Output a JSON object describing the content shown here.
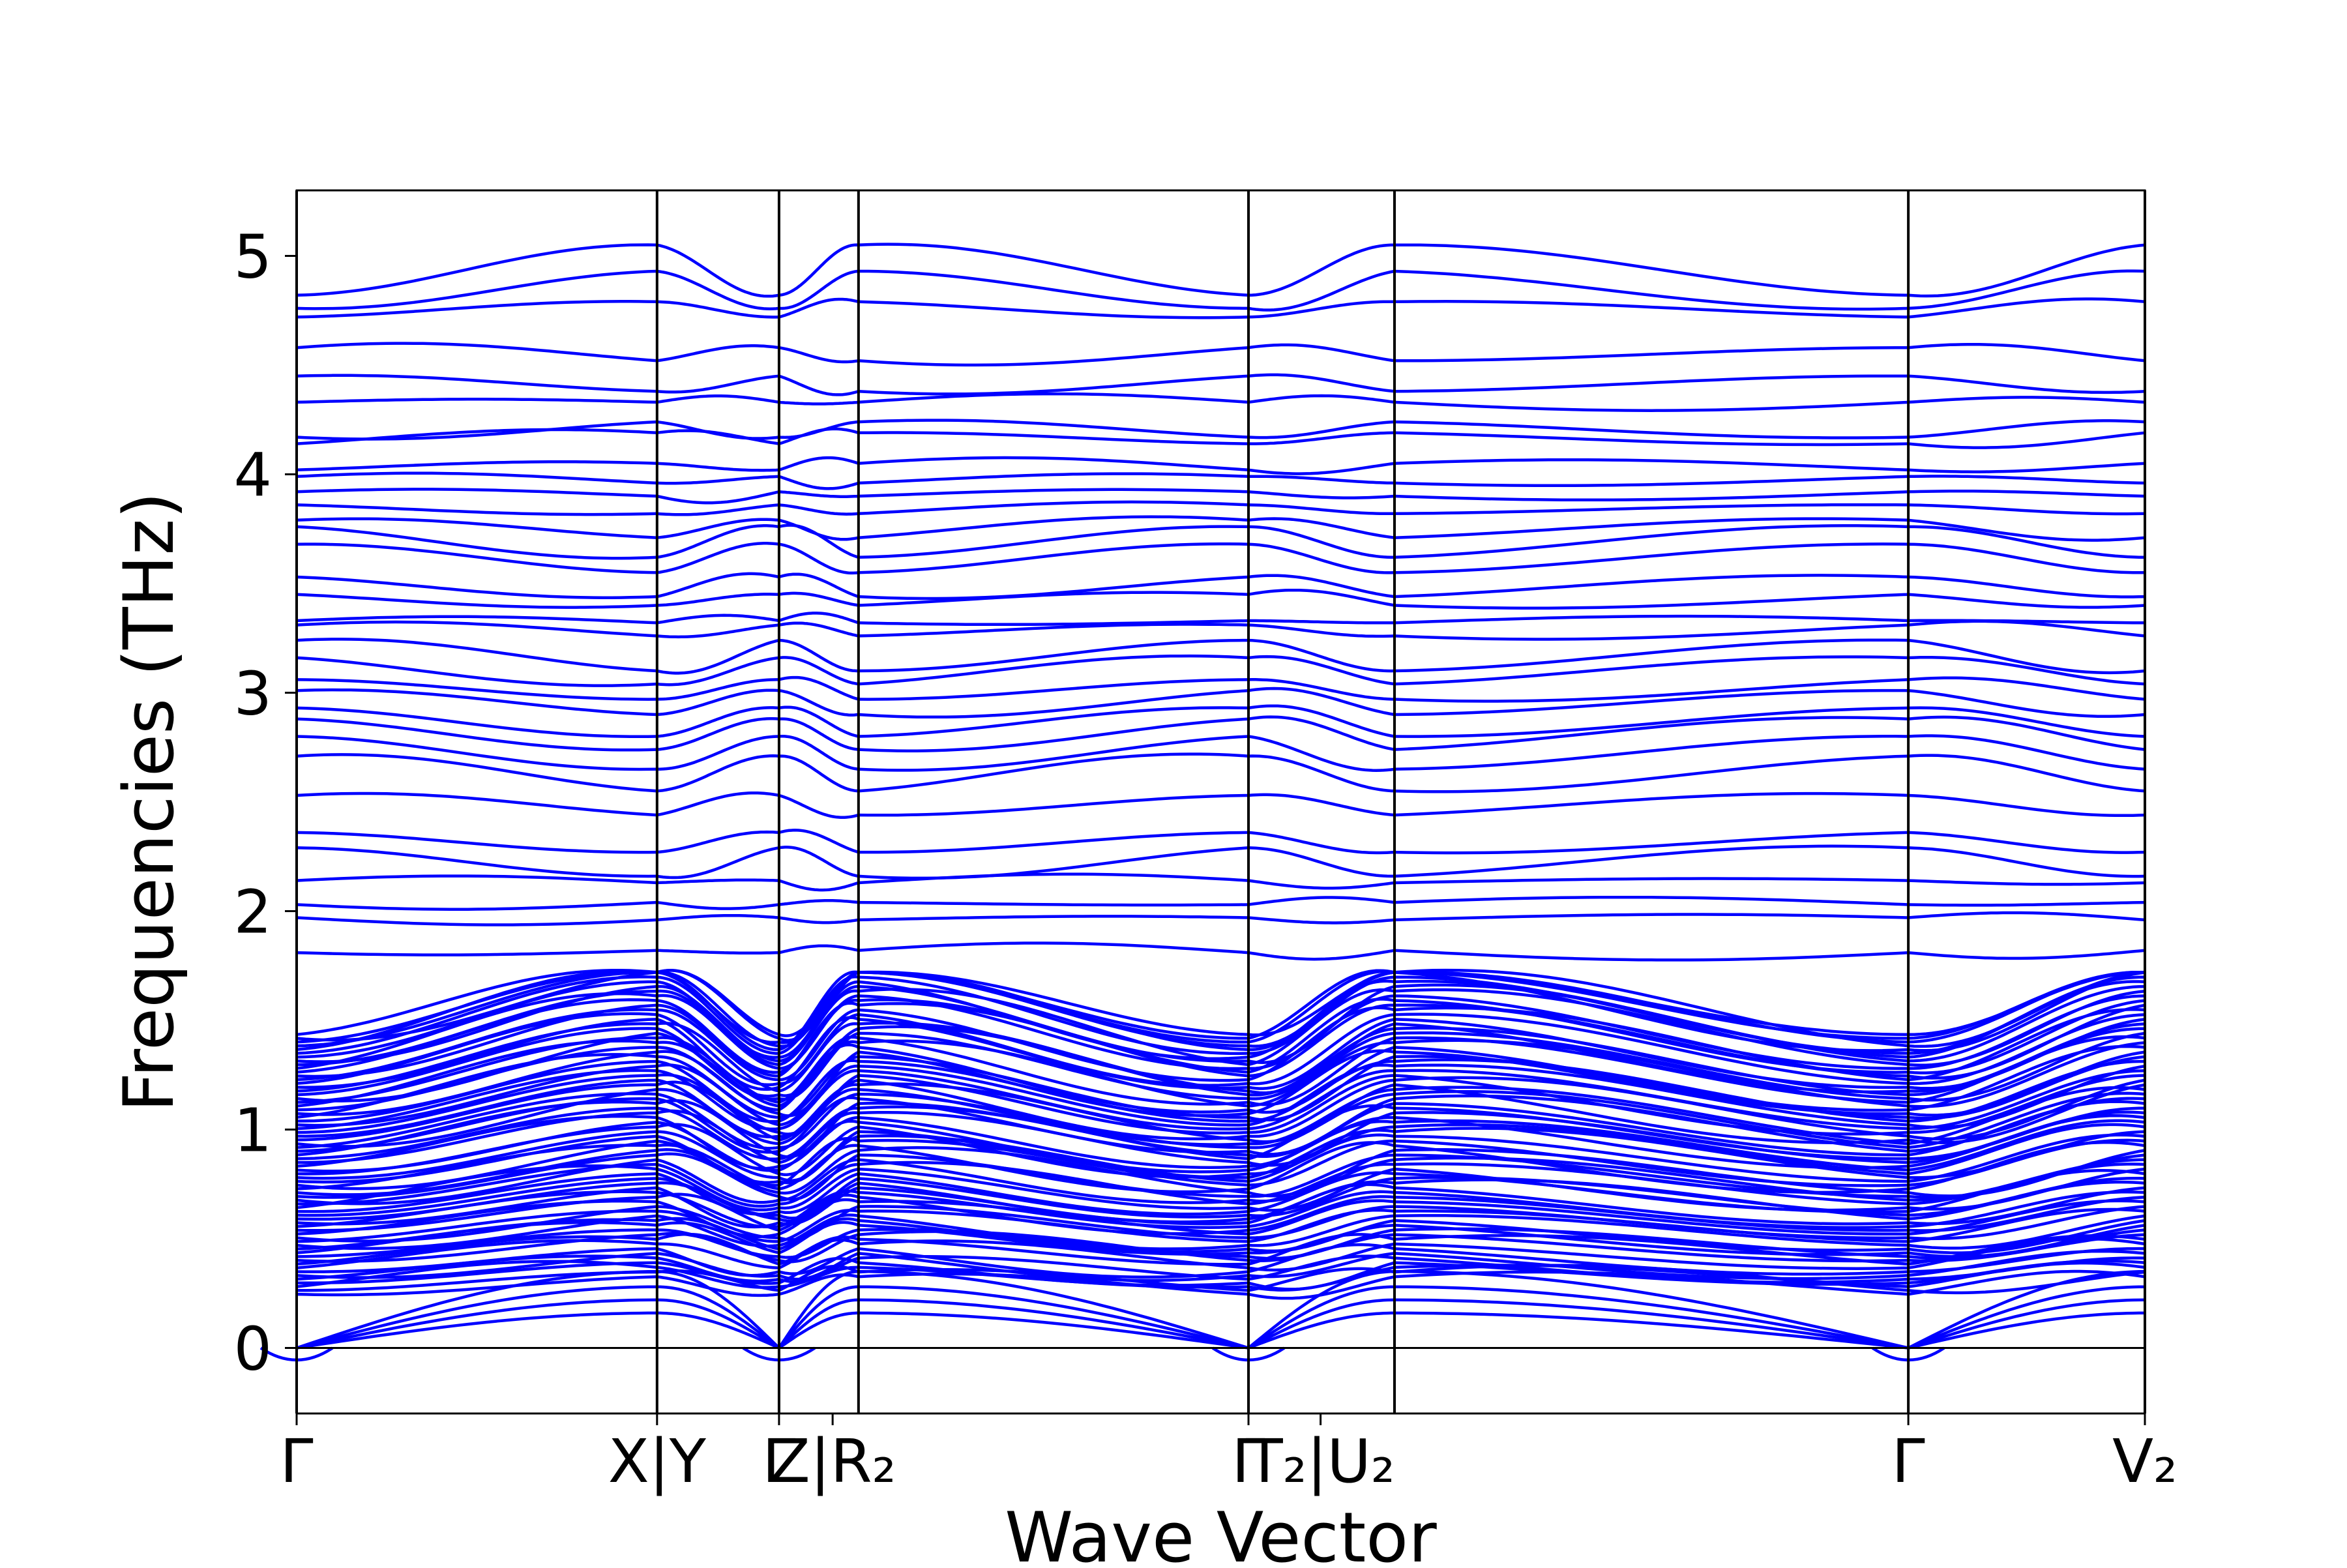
{
  "chart_data": {
    "type": "line",
    "title": "",
    "xlabel": "Wave Vector",
    "ylabel": "Frequencies (THz)",
    "ylim": [
      -0.3,
      5.3
    ],
    "yticks": [
      0,
      1,
      2,
      3,
      4,
      5
    ],
    "ytick_labels": [
      "0",
      "1",
      "2",
      "3",
      "4",
      "5"
    ],
    "grid": false,
    "legend": "none",
    "line_color": "#0000ff",
    "zero_line": true,
    "xlim": [
      0,
      1
    ],
    "segment_boundaries": [
      0,
      0.195,
      0.261,
      0.304,
      0.515,
      0.594,
      0.872,
      1.0
    ],
    "xtick_labels": [
      {
        "x": 0.0,
        "text": "Γ"
      },
      {
        "x": 0.195,
        "text": "X|Y"
      },
      {
        "x": 0.261,
        "text": "Γ"
      },
      {
        "x": 0.29,
        "text": "Z|R₂"
      },
      {
        "x": 0.515,
        "text": "Γ"
      },
      {
        "x": 0.554,
        "text": "T₂|U₂"
      },
      {
        "x": 0.872,
        "text": "Γ"
      },
      {
        "x": 1.0,
        "text": "V₂"
      }
    ],
    "bands": {
      "description": "Phonon dispersion, ~200 blue branches; acoustic branches go to 0 at Γ points",
      "high_freq_at_gamma": [
        4.82,
        4.76,
        4.72,
        4.58,
        4.45,
        4.33,
        4.17,
        4.14,
        4.02,
        3.99,
        3.92,
        3.86,
        3.79,
        3.76,
        3.68,
        3.53,
        3.45,
        3.33,
        3.31,
        3.24,
        3.16,
        3.06,
        3.01,
        2.93,
        2.88,
        2.8,
        2.71,
        2.53,
        2.36,
        2.29,
        2.14,
        2.03,
        1.97,
        1.81
      ],
      "high_freq_at_zone_edge": [
        5.05,
        4.93,
        4.79,
        4.52,
        4.38,
        4.33,
        4.24,
        4.19,
        4.05,
        3.96,
        3.9,
        3.82,
        3.71,
        3.62,
        3.55,
        3.44,
        3.4,
        3.32,
        3.26,
        3.1,
        3.04,
        2.97,
        2.9,
        2.8,
        2.74,
        2.65,
        2.55,
        2.44,
        2.27,
        2.16,
        2.13,
        2.04,
        1.96,
        1.82
      ]
    }
  }
}
